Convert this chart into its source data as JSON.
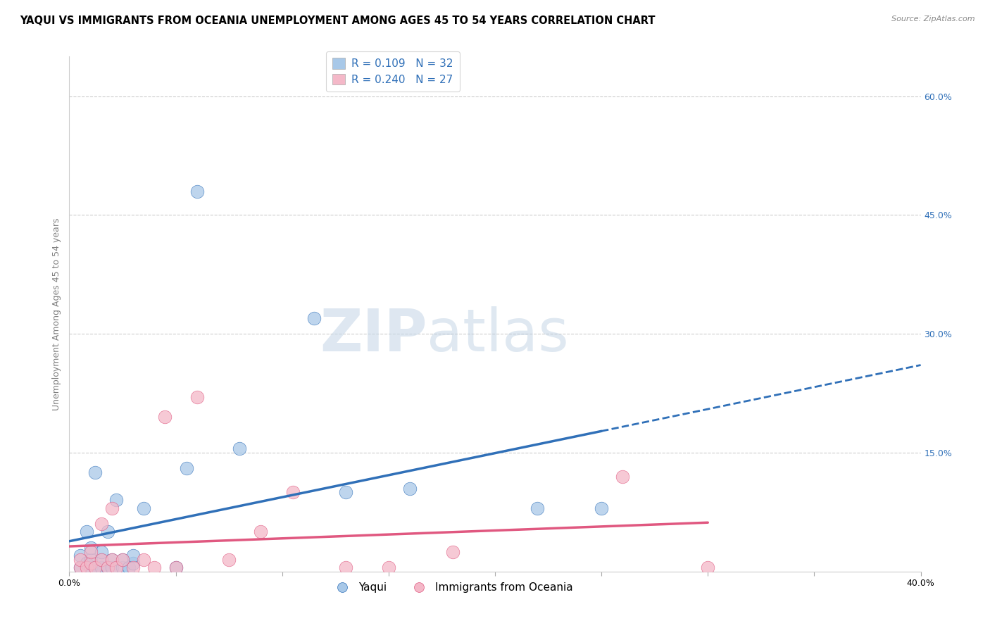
{
  "title": "YAQUI VS IMMIGRANTS FROM OCEANIA UNEMPLOYMENT AMONG AGES 45 TO 54 YEARS CORRELATION CHART",
  "source": "Source: ZipAtlas.com",
  "ylabel": "Unemployment Among Ages 45 to 54 years",
  "xlim": [
    0.0,
    0.4
  ],
  "ylim": [
    0.0,
    0.65
  ],
  "yticks_right": [
    0.0,
    0.15,
    0.3,
    0.45,
    0.6
  ],
  "yticklabels_right": [
    "",
    "15.0%",
    "30.0%",
    "45.0%",
    "60.0%"
  ],
  "legend_blue_r": "0.109",
  "legend_blue_n": "32",
  "legend_pink_r": "0.240",
  "legend_pink_n": "27",
  "legend_label_blue": "Yaqui",
  "legend_label_pink": "Immigrants from Oceania",
  "color_blue": "#a8c8e8",
  "color_pink": "#f4b8c8",
  "color_line_blue": "#3070b8",
  "color_line_pink": "#e05880",
  "blue_x": [
    0.005,
    0.005,
    0.008,
    0.008,
    0.01,
    0.01,
    0.01,
    0.012,
    0.012,
    0.015,
    0.015,
    0.015,
    0.018,
    0.018,
    0.02,
    0.02,
    0.022,
    0.025,
    0.025,
    0.028,
    0.03,
    0.03,
    0.035,
    0.05,
    0.055,
    0.06,
    0.08,
    0.115,
    0.13,
    0.16,
    0.22,
    0.25
  ],
  "blue_y": [
    0.005,
    0.02,
    0.01,
    0.05,
    0.005,
    0.015,
    0.03,
    0.005,
    0.125,
    0.005,
    0.015,
    0.025,
    0.005,
    0.05,
    0.005,
    0.015,
    0.09,
    0.005,
    0.015,
    0.005,
    0.01,
    0.02,
    0.08,
    0.005,
    0.13,
    0.48,
    0.155,
    0.32,
    0.1,
    0.105,
    0.08,
    0.08
  ],
  "pink_x": [
    0.005,
    0.005,
    0.008,
    0.01,
    0.01,
    0.012,
    0.015,
    0.015,
    0.018,
    0.02,
    0.02,
    0.022,
    0.025,
    0.03,
    0.035,
    0.04,
    0.045,
    0.05,
    0.06,
    0.075,
    0.09,
    0.105,
    0.13,
    0.15,
    0.18,
    0.26,
    0.3
  ],
  "pink_y": [
    0.005,
    0.015,
    0.005,
    0.01,
    0.025,
    0.005,
    0.015,
    0.06,
    0.005,
    0.015,
    0.08,
    0.005,
    0.015,
    0.005,
    0.015,
    0.005,
    0.195,
    0.005,
    0.22,
    0.015,
    0.05,
    0.1,
    0.005,
    0.005,
    0.025,
    0.12,
    0.005
  ],
  "title_fontsize": 10.5,
  "axis_label_fontsize": 9,
  "tick_fontsize": 9,
  "legend_fontsize": 11
}
